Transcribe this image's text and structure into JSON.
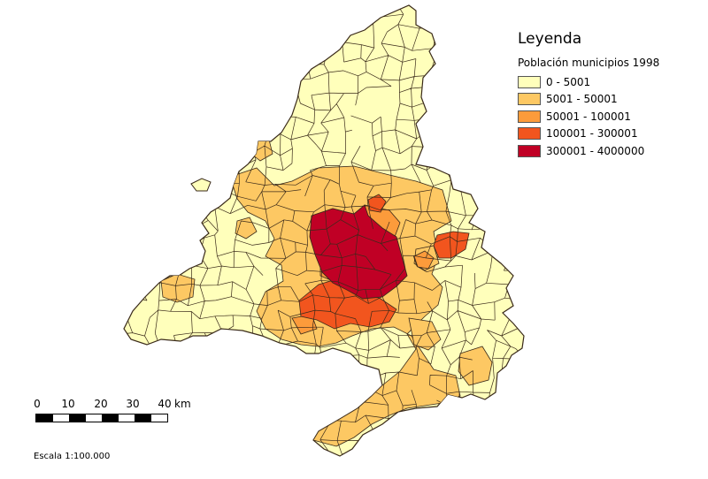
{
  "legend": {
    "title": "Leyenda",
    "subtitle": "Población municipios 1998",
    "classes": [
      {
        "label": "0 - 5001",
        "color": "#ffffbb"
      },
      {
        "label": "5001 - 50001",
        "color": "#fdc863"
      },
      {
        "label": "50001 - 100001",
        "color": "#fc9b3b"
      },
      {
        "label": "100001 - 300001",
        "color": "#f2551e"
      },
      {
        "label": "300001 - 4000000",
        "color": "#c00025"
      }
    ]
  },
  "scale_bar": {
    "ticks": [
      "0",
      "10",
      "20",
      "30",
      "40"
    ],
    "unit": "km",
    "scale_text": "Escala 1:100.000"
  },
  "map": {
    "boundary_color": "#3a2a1a"
  }
}
